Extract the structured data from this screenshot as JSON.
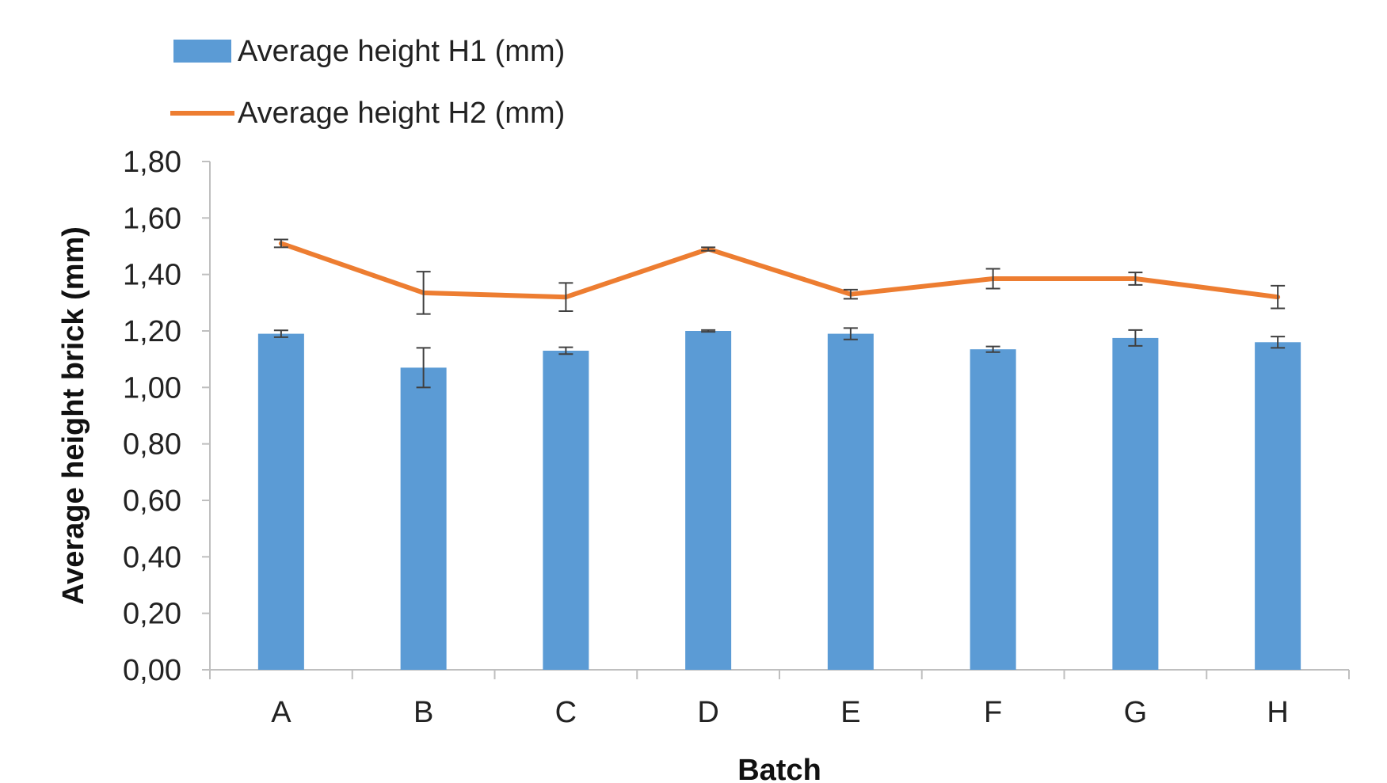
{
  "chart_data": {
    "type": "bar",
    "categories": [
      "A",
      "B",
      "C",
      "D",
      "E",
      "F",
      "G",
      "H"
    ],
    "xlabel": "Batch",
    "ylabel": "Average height brick (mm)",
    "ylim": [
      0,
      1.8
    ],
    "y_ticks": [
      0,
      0.2,
      0.4,
      0.6,
      0.8,
      1.0,
      1.2,
      1.4,
      1.6,
      1.8
    ],
    "y_tick_labels": [
      "0,00",
      "0,20",
      "0,40",
      "0,60",
      "0,80",
      "1,00",
      "1,20",
      "1,40",
      "1,60",
      "1,80"
    ],
    "grid": false,
    "legend_position": "top-left",
    "series": [
      {
        "name": "Average height H1 (mm)",
        "type": "bar",
        "color": "#5b9bd5",
        "values": [
          1.19,
          1.07,
          1.13,
          1.2,
          1.19,
          1.135,
          1.175,
          1.16
        ],
        "errors": [
          0.012,
          0.07,
          0.012,
          0.003,
          0.02,
          0.01,
          0.028,
          0.02
        ]
      },
      {
        "name": "Average height H2 (mm)",
        "type": "line",
        "color": "#ed7d31",
        "values": [
          1.51,
          1.335,
          1.32,
          1.49,
          1.33,
          1.385,
          1.385,
          1.32
        ],
        "errors": [
          0.014,
          0.075,
          0.05,
          0.006,
          0.016,
          0.035,
          0.022,
          0.04
        ]
      }
    ]
  }
}
